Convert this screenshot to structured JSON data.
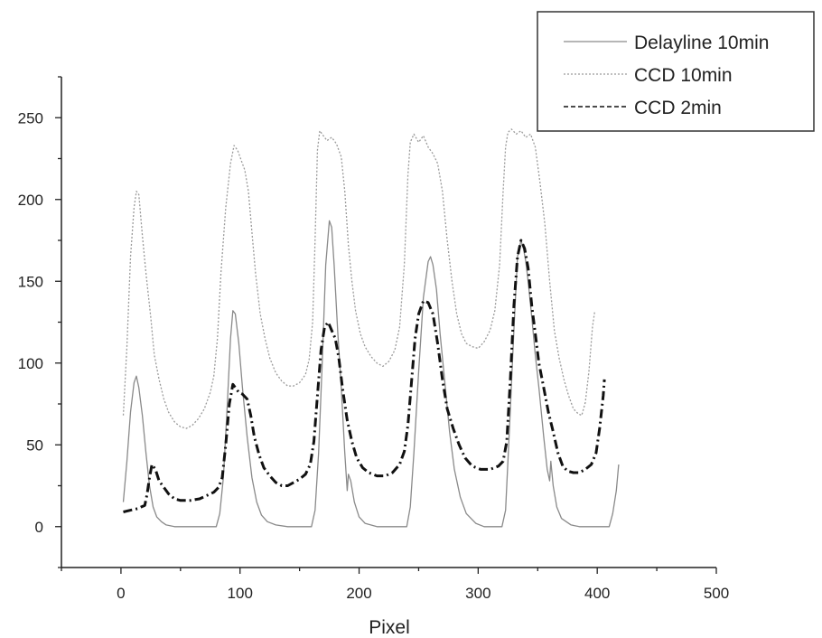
{
  "chart_data": {
    "type": "line",
    "title": "",
    "xlabel": "Pixel",
    "ylabel": "",
    "xlim": [
      -50,
      500
    ],
    "ylim": [
      -25,
      275
    ],
    "x_ticks": [
      0,
      100,
      200,
      300,
      400,
      500
    ],
    "y_ticks": [
      0,
      50,
      100,
      150,
      200,
      250
    ],
    "grid": false,
    "legend_position": "top-right",
    "series": [
      {
        "name": "Delayline 10min",
        "style": "solid",
        "color": "#8a8a8a",
        "points": [
          [
            2,
            15
          ],
          [
            5,
            40
          ],
          [
            8,
            70
          ],
          [
            11,
            88
          ],
          [
            13,
            92
          ],
          [
            15,
            85
          ],
          [
            18,
            68
          ],
          [
            21,
            45
          ],
          [
            24,
            25
          ],
          [
            27,
            12
          ],
          [
            30,
            6
          ],
          [
            34,
            3
          ],
          [
            38,
            1
          ],
          [
            45,
            0
          ],
          [
            60,
            0
          ],
          [
            80,
            0
          ],
          [
            83,
            8
          ],
          [
            86,
            30
          ],
          [
            89,
            70
          ],
          [
            92,
            115
          ],
          [
            94,
            132
          ],
          [
            96,
            130
          ],
          [
            99,
            112
          ],
          [
            102,
            85
          ],
          [
            106,
            55
          ],
          [
            110,
            30
          ],
          [
            114,
            15
          ],
          [
            118,
            7
          ],
          [
            123,
            3
          ],
          [
            130,
            1
          ],
          [
            140,
            0
          ],
          [
            160,
            0
          ],
          [
            163,
            10
          ],
          [
            166,
            45
          ],
          [
            169,
            100
          ],
          [
            172,
            160
          ],
          [
            175,
            187
          ],
          [
            177,
            183
          ],
          [
            179,
            160
          ],
          [
            182,
            120
          ],
          [
            185,
            85
          ],
          [
            188,
            45
          ],
          [
            190,
            22
          ],
          [
            191,
            32
          ],
          [
            193,
            28
          ],
          [
            196,
            15
          ],
          [
            200,
            6
          ],
          [
            205,
            2
          ],
          [
            215,
            0
          ],
          [
            240,
            0
          ],
          [
            243,
            12
          ],
          [
            246,
            45
          ],
          [
            250,
            95
          ],
          [
            254,
            140
          ],
          [
            258,
            162
          ],
          [
            260,
            165
          ],
          [
            262,
            160
          ],
          [
            265,
            145
          ],
          [
            268,
            118
          ],
          [
            272,
            88
          ],
          [
            276,
            58
          ],
          [
            280,
            35
          ],
          [
            285,
            18
          ],
          [
            290,
            8
          ],
          [
            298,
            2
          ],
          [
            305,
            0
          ],
          [
            320,
            0
          ],
          [
            323,
            10
          ],
          [
            326,
            55
          ],
          [
            330,
            120
          ],
          [
            333,
            165
          ],
          [
            336,
            175
          ],
          [
            338,
            170
          ],
          [
            340,
            162
          ],
          [
            342,
            150
          ],
          [
            345,
            128
          ],
          [
            348,
            105
          ],
          [
            351,
            85
          ],
          [
            355,
            55
          ],
          [
            358,
            35
          ],
          [
            360,
            28
          ],
          [
            361,
            40
          ],
          [
            363,
            25
          ],
          [
            366,
            12
          ],
          [
            370,
            5
          ],
          [
            378,
            1
          ],
          [
            385,
            0
          ],
          [
            410,
            0
          ],
          [
            413,
            8
          ],
          [
            416,
            22
          ],
          [
            418,
            38
          ]
        ]
      },
      {
        "name": "CCD 10min",
        "style": "dotted",
        "color": "#9a9a9a",
        "points": [
          [
            2,
            68
          ],
          [
            5,
            110
          ],
          [
            8,
            165
          ],
          [
            11,
            195
          ],
          [
            13,
            205
          ],
          [
            15,
            203
          ],
          [
            18,
            178
          ],
          [
            21,
            155
          ],
          [
            25,
            128
          ],
          [
            28,
            105
          ],
          [
            32,
            90
          ],
          [
            36,
            78
          ],
          [
            40,
            70
          ],
          [
            45,
            64
          ],
          [
            50,
            61
          ],
          [
            55,
            60
          ],
          [
            60,
            62
          ],
          [
            65,
            66
          ],
          [
            70,
            72
          ],
          [
            75,
            82
          ],
          [
            78,
            92
          ],
          [
            81,
            115
          ],
          [
            84,
            155
          ],
          [
            88,
            195
          ],
          [
            92,
            222
          ],
          [
            95,
            233
          ],
          [
            98,
            230
          ],
          [
            101,
            224
          ],
          [
            104,
            218
          ],
          [
            107,
            205
          ],
          [
            110,
            180
          ],
          [
            113,
            155
          ],
          [
            117,
            130
          ],
          [
            121,
            115
          ],
          [
            125,
            103
          ],
          [
            130,
            94
          ],
          [
            135,
            89
          ],
          [
            140,
            86
          ],
          [
            145,
            86
          ],
          [
            150,
            88
          ],
          [
            155,
            93
          ],
          [
            158,
            102
          ],
          [
            161,
            125
          ],
          [
            163,
            175
          ],
          [
            165,
            230
          ],
          [
            167,
            242
          ],
          [
            170,
            239
          ],
          [
            173,
            236
          ],
          [
            177,
            238
          ],
          [
            181,
            234
          ],
          [
            185,
            226
          ],
          [
            188,
            205
          ],
          [
            191,
            172
          ],
          [
            194,
            150
          ],
          [
            197,
            132
          ],
          [
            201,
            118
          ],
          [
            205,
            110
          ],
          [
            210,
            104
          ],
          [
            215,
            100
          ],
          [
            220,
            98
          ],
          [
            225,
            101
          ],
          [
            230,
            108
          ],
          [
            234,
            122
          ],
          [
            238,
            160
          ],
          [
            241,
            215
          ],
          [
            243,
            235
          ],
          [
            246,
            240
          ],
          [
            250,
            235
          ],
          [
            254,
            239
          ],
          [
            258,
            232
          ],
          [
            262,
            228
          ],
          [
            266,
            222
          ],
          [
            270,
            205
          ],
          [
            274,
            175
          ],
          [
            278,
            150
          ],
          [
            282,
            130
          ],
          [
            286,
            118
          ],
          [
            290,
            112
          ],
          [
            295,
            110
          ],
          [
            300,
            109
          ],
          [
            305,
            113
          ],
          [
            310,
            120
          ],
          [
            314,
            132
          ],
          [
            318,
            160
          ],
          [
            321,
            205
          ],
          [
            323,
            232
          ],
          [
            325,
            241
          ],
          [
            328,
            243
          ],
          [
            332,
            240
          ],
          [
            336,
            242
          ],
          [
            340,
            238
          ],
          [
            344,
            240
          ],
          [
            348,
            232
          ],
          [
            352,
            210
          ],
          [
            356,
            185
          ],
          [
            360,
            150
          ],
          [
            364,
            120
          ],
          [
            368,
            103
          ],
          [
            372,
            90
          ],
          [
            376,
            80
          ],
          [
            380,
            72
          ],
          [
            384,
            69
          ],
          [
            387,
            68
          ],
          [
            390,
            76
          ],
          [
            393,
            95
          ],
          [
            396,
            122
          ],
          [
            398,
            132
          ]
        ]
      },
      {
        "name": "CCD 2min",
        "style": "dashdot",
        "color": "#111111",
        "points": [
          [
            2,
            9
          ],
          [
            8,
            10
          ],
          [
            14,
            11
          ],
          [
            20,
            13
          ],
          [
            22,
            20
          ],
          [
            24,
            30
          ],
          [
            26,
            38
          ],
          [
            29,
            35
          ],
          [
            32,
            28
          ],
          [
            36,
            24
          ],
          [
            40,
            20
          ],
          [
            45,
            17
          ],
          [
            50,
            16
          ],
          [
            58,
            16
          ],
          [
            66,
            17
          ],
          [
            72,
            19
          ],
          [
            78,
            21
          ],
          [
            82,
            24
          ],
          [
            85,
            30
          ],
          [
            88,
            50
          ],
          [
            91,
            75
          ],
          [
            94,
            87
          ],
          [
            96,
            85
          ],
          [
            99,
            82
          ],
          [
            102,
            81
          ],
          [
            106,
            78
          ],
          [
            109,
            68
          ],
          [
            112,
            55
          ],
          [
            116,
            44
          ],
          [
            120,
            36
          ],
          [
            125,
            31
          ],
          [
            130,
            27
          ],
          [
            135,
            25
          ],
          [
            140,
            25
          ],
          [
            145,
            27
          ],
          [
            150,
            29
          ],
          [
            155,
            32
          ],
          [
            159,
            38
          ],
          [
            162,
            52
          ],
          [
            165,
            80
          ],
          [
            168,
            108
          ],
          [
            171,
            122
          ],
          [
            174,
            125
          ],
          [
            177,
            120
          ],
          [
            180,
            115
          ],
          [
            183,
            103
          ],
          [
            186,
            85
          ],
          [
            190,
            65
          ],
          [
            194,
            52
          ],
          [
            198,
            42
          ],
          [
            203,
            36
          ],
          [
            208,
            33
          ],
          [
            215,
            31
          ],
          [
            222,
            31
          ],
          [
            228,
            33
          ],
          [
            234,
            38
          ],
          [
            238,
            46
          ],
          [
            241,
            62
          ],
          [
            244,
            88
          ],
          [
            247,
            115
          ],
          [
            250,
            130
          ],
          [
            254,
            138
          ],
          [
            258,
            137
          ],
          [
            262,
            130
          ],
          [
            266,
            112
          ],
          [
            270,
            90
          ],
          [
            274,
            72
          ],
          [
            279,
            60
          ],
          [
            284,
            50
          ],
          [
            289,
            42
          ],
          [
            295,
            37
          ],
          [
            302,
            35
          ],
          [
            310,
            35
          ],
          [
            317,
            37
          ],
          [
            321,
            40
          ],
          [
            324,
            52
          ],
          [
            327,
            90
          ],
          [
            330,
            135
          ],
          [
            333,
            165
          ],
          [
            336,
            175
          ],
          [
            339,
            170
          ],
          [
            342,
            158
          ],
          [
            345,
            135
          ],
          [
            348,
            118
          ],
          [
            351,
            100
          ],
          [
            355,
            85
          ],
          [
            359,
            70
          ],
          [
            363,
            58
          ],
          [
            367,
            45
          ],
          [
            371,
            37
          ],
          [
            375,
            34
          ],
          [
            380,
            33
          ],
          [
            385,
            33
          ],
          [
            390,
            35
          ],
          [
            395,
            38
          ],
          [
            399,
            45
          ],
          [
            402,
            60
          ],
          [
            405,
            80
          ],
          [
            406,
            90
          ]
        ]
      }
    ]
  }
}
